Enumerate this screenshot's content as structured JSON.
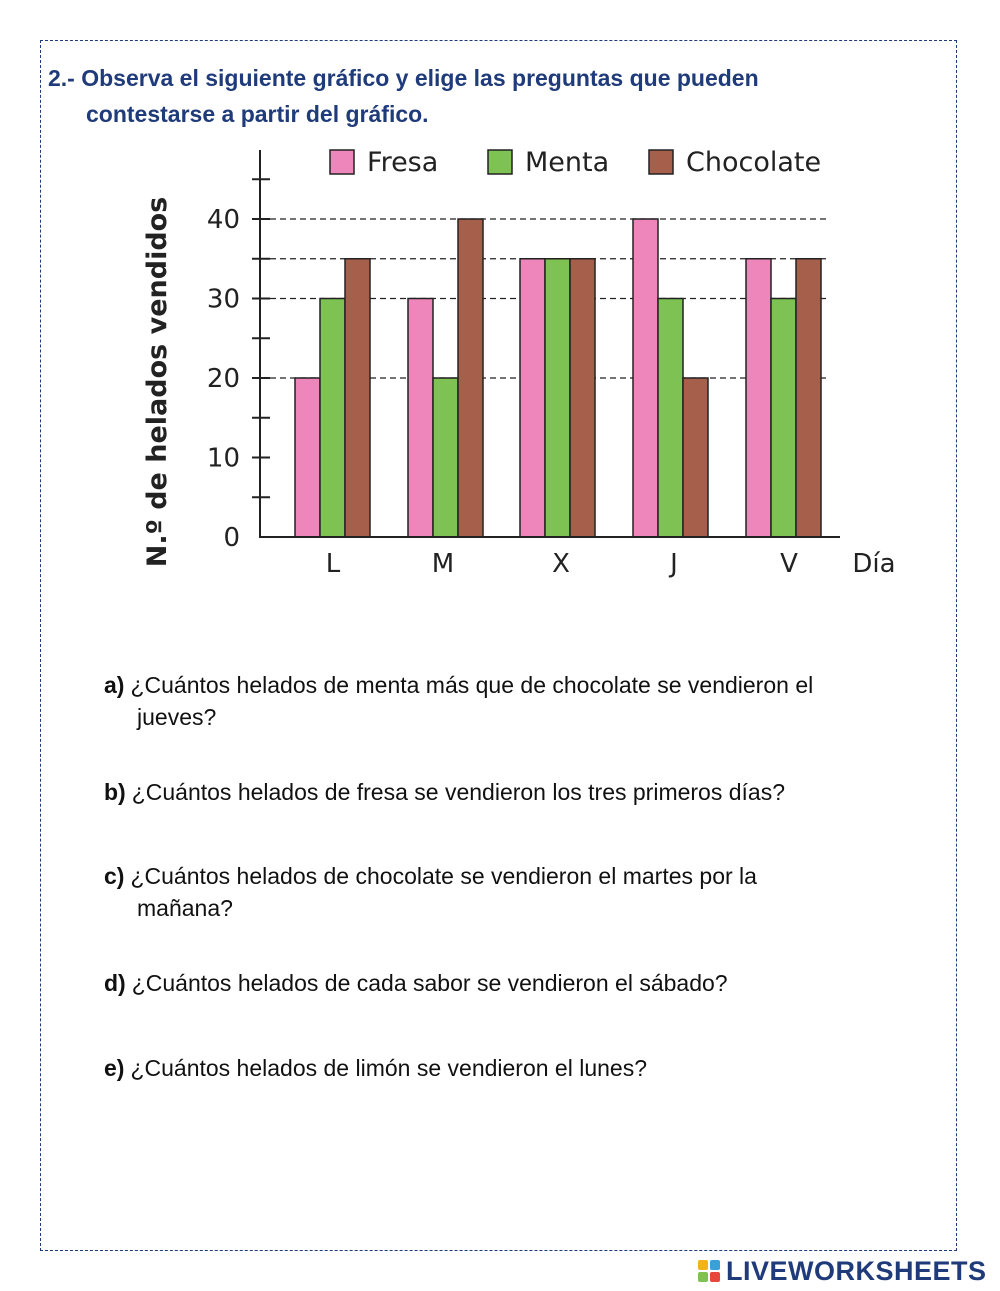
{
  "heading": {
    "line1": "2.- Observa el siguiente gráfico y elige las preguntas que pueden",
    "line2": "contestarse a partir del gráfico."
  },
  "chart_data": {
    "type": "bar",
    "categories": [
      "L",
      "M",
      "X",
      "J",
      "V"
    ],
    "series": [
      {
        "name": "Fresa",
        "color": "#ef86bb",
        "values": [
          20,
          30,
          35,
          40,
          35
        ]
      },
      {
        "name": "Menta",
        "color": "#7dc252",
        "values": [
          30,
          20,
          35,
          30,
          30
        ]
      },
      {
        "name": "Chocolate",
        "color": "#a55f4b",
        "values": [
          35,
          40,
          35,
          20,
          35
        ]
      }
    ],
    "xlabel": "Día",
    "ylabel": "N.º de helados vendidos",
    "ylim": [
      0,
      45
    ],
    "yticks": [
      0,
      10,
      20,
      30,
      40
    ],
    "reference_lines": [
      20,
      30,
      35,
      40
    ],
    "legend_position": "top",
    "grid": false
  },
  "questions": [
    {
      "letter": "a)",
      "text": "¿Cuántos helados de menta más que de chocolate se vendieron el",
      "continuation": "jueves?"
    },
    {
      "letter": "b)",
      "text": "¿Cuántos helados de fresa se vendieron los tres primeros días?",
      "continuation": ""
    },
    {
      "letter": "c)",
      "text": "¿Cuántos helados de chocolate se vendieron el martes por la",
      "continuation": "mañana?"
    },
    {
      "letter": "d)",
      "text": "¿Cuántos helados de cada sabor se vendieron el sábado?",
      "continuation": ""
    },
    {
      "letter": "e)",
      "text": "¿Cuántos helados de limón se vendieron el lunes?",
      "continuation": ""
    }
  ],
  "logo": {
    "text": "LIVEWORKSHEETS",
    "colors": [
      "#f2b21b",
      "#3aa0d8",
      "#7dc252",
      "#e8483c"
    ]
  }
}
